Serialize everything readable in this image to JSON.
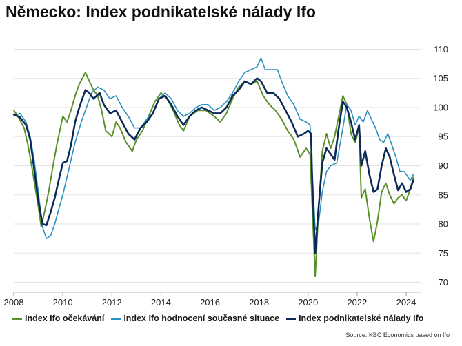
{
  "title": "Německo: Index podnikatelské nálady Ifo",
  "source": "Source: KBC Economics based on Ifo",
  "chart_data": {
    "type": "line",
    "xlabel": "",
    "ylabel": "",
    "xlim": [
      2008,
      2024.42
    ],
    "ylim": [
      69,
      111
    ],
    "x_ticks": [
      "2008",
      "2010",
      "2012",
      "2014",
      "2016",
      "2018",
      "2020",
      "2022",
      "2024"
    ],
    "y_ticks": [
      "70",
      "75",
      "80",
      "85",
      "90",
      "95",
      "100",
      "105",
      "110"
    ],
    "y_axis_position": "right",
    "grid": "horizontal",
    "legend_position": "bottom",
    "series": [
      {
        "name": "Index Ifo očekávání",
        "color": "#5a8f29",
        "points": [
          [
            2008.0,
            99.5
          ],
          [
            2008.17,
            98.5
          ],
          [
            2008.42,
            96.5
          ],
          [
            2008.58,
            93.5
          ],
          [
            2008.75,
            89.5
          ],
          [
            2009.0,
            83.0
          ],
          [
            2009.12,
            79.5
          ],
          [
            2009.25,
            82.0
          ],
          [
            2009.42,
            85.5
          ],
          [
            2009.58,
            89.5
          ],
          [
            2009.75,
            93.5
          ],
          [
            2010.0,
            98.5
          ],
          [
            2010.17,
            97.5
          ],
          [
            2010.33,
            99.5
          ],
          [
            2010.5,
            102.0
          ],
          [
            2010.67,
            104.0
          ],
          [
            2010.92,
            106.0
          ],
          [
            2011.08,
            104.5
          ],
          [
            2011.25,
            103.0
          ],
          [
            2011.42,
            102.0
          ],
          [
            2011.58,
            99.5
          ],
          [
            2011.75,
            96.0
          ],
          [
            2012.0,
            95.0
          ],
          [
            2012.17,
            97.5
          ],
          [
            2012.33,
            96.5
          ],
          [
            2012.58,
            94.0
          ],
          [
            2012.83,
            92.5
          ],
          [
            2013.0,
            94.5
          ],
          [
            2013.25,
            96.0
          ],
          [
            2013.5,
            98.5
          ],
          [
            2013.75,
            101.0
          ],
          [
            2014.0,
            102.5
          ],
          [
            2014.25,
            101.5
          ],
          [
            2014.5,
            99.5
          ],
          [
            2014.75,
            97.0
          ],
          [
            2014.92,
            96.0
          ],
          [
            2015.17,
            98.5
          ],
          [
            2015.5,
            99.5
          ],
          [
            2015.83,
            99.5
          ],
          [
            2016.0,
            99.0
          ],
          [
            2016.17,
            98.5
          ],
          [
            2016.42,
            97.5
          ],
          [
            2016.67,
            99.0
          ],
          [
            2016.92,
            101.5
          ],
          [
            2017.17,
            103.5
          ],
          [
            2017.42,
            104.5
          ],
          [
            2017.67,
            104.0
          ],
          [
            2017.92,
            104.5
          ],
          [
            2018.17,
            102.0
          ],
          [
            2018.42,
            100.5
          ],
          [
            2018.67,
            99.5
          ],
          [
            2018.92,
            98.0
          ],
          [
            2019.17,
            96.0
          ],
          [
            2019.42,
            94.5
          ],
          [
            2019.67,
            91.5
          ],
          [
            2019.92,
            93.0
          ],
          [
            2020.08,
            92.0
          ],
          [
            2020.17,
            83.0
          ],
          [
            2020.29,
            71.0
          ],
          [
            2020.42,
            82.0
          ],
          [
            2020.58,
            92.5
          ],
          [
            2020.75,
            95.5
          ],
          [
            2020.92,
            93.0
          ],
          [
            2021.08,
            95.0
          ],
          [
            2021.25,
            98.5
          ],
          [
            2021.42,
            102.0
          ],
          [
            2021.58,
            100.5
          ],
          [
            2021.75,
            95.5
          ],
          [
            2021.92,
            94.0
          ],
          [
            2022.08,
            96.5
          ],
          [
            2022.17,
            84.5
          ],
          [
            2022.33,
            86.0
          ],
          [
            2022.5,
            81.0
          ],
          [
            2022.67,
            77.0
          ],
          [
            2022.83,
            80.5
          ],
          [
            2023.0,
            85.5
          ],
          [
            2023.17,
            87.0
          ],
          [
            2023.33,
            85.0
          ],
          [
            2023.5,
            83.5
          ],
          [
            2023.67,
            84.5
          ],
          [
            2023.83,
            85.0
          ],
          [
            2024.0,
            84.0
          ],
          [
            2024.17,
            86.0
          ],
          [
            2024.29,
            88.0
          ]
        ]
      },
      {
        "name": "Index Ifo hodnocení současné situace",
        "color": "#2a8fc1",
        "points": [
          [
            2008.0,
            98.5
          ],
          [
            2008.25,
            99.0
          ],
          [
            2008.5,
            97.5
          ],
          [
            2008.67,
            95.0
          ],
          [
            2008.83,
            91.0
          ],
          [
            2009.0,
            85.5
          ],
          [
            2009.17,
            79.5
          ],
          [
            2009.33,
            77.5
          ],
          [
            2009.5,
            78.0
          ],
          [
            2009.67,
            80.0
          ],
          [
            2009.83,
            82.5
          ],
          [
            2010.0,
            85.0
          ],
          [
            2010.25,
            89.5
          ],
          [
            2010.5,
            94.0
          ],
          [
            2010.75,
            97.5
          ],
          [
            2010.92,
            99.5
          ],
          [
            2011.17,
            102.5
          ],
          [
            2011.42,
            103.5
          ],
          [
            2011.67,
            103.0
          ],
          [
            2011.92,
            101.5
          ],
          [
            2012.17,
            102.0
          ],
          [
            2012.42,
            100.0
          ],
          [
            2012.67,
            98.5
          ],
          [
            2012.92,
            96.5
          ],
          [
            2013.17,
            96.5
          ],
          [
            2013.42,
            98.0
          ],
          [
            2013.67,
            99.0
          ],
          [
            2013.92,
            101.5
          ],
          [
            2014.17,
            102.5
          ],
          [
            2014.42,
            101.5
          ],
          [
            2014.67,
            99.5
          ],
          [
            2014.92,
            98.5
          ],
          [
            2015.17,
            99.0
          ],
          [
            2015.42,
            100.0
          ],
          [
            2015.67,
            100.5
          ],
          [
            2015.92,
            100.5
          ],
          [
            2016.17,
            99.5
          ],
          [
            2016.42,
            100.0
          ],
          [
            2016.67,
            101.0
          ],
          [
            2016.92,
            102.5
          ],
          [
            2017.17,
            104.5
          ],
          [
            2017.42,
            106.0
          ],
          [
            2017.67,
            106.5
          ],
          [
            2017.92,
            107.0
          ],
          [
            2018.08,
            108.5
          ],
          [
            2018.25,
            106.5
          ],
          [
            2018.5,
            106.5
          ],
          [
            2018.75,
            106.5
          ],
          [
            2018.92,
            104.5
          ],
          [
            2019.17,
            102.0
          ],
          [
            2019.42,
            100.5
          ],
          [
            2019.67,
            98.0
          ],
          [
            2019.92,
            97.5
          ],
          [
            2020.08,
            97.0
          ],
          [
            2020.17,
            89.0
          ],
          [
            2020.29,
            79.0
          ],
          [
            2020.42,
            80.0
          ],
          [
            2020.58,
            85.5
          ],
          [
            2020.75,
            89.0
          ],
          [
            2020.92,
            90.0
          ],
          [
            2021.17,
            90.5
          ],
          [
            2021.42,
            96.5
          ],
          [
            2021.58,
            100.5
          ],
          [
            2021.75,
            99.5
          ],
          [
            2021.92,
            97.0
          ],
          [
            2022.08,
            98.5
          ],
          [
            2022.25,
            97.5
          ],
          [
            2022.42,
            99.5
          ],
          [
            2022.58,
            98.0
          ],
          [
            2022.75,
            96.5
          ],
          [
            2022.92,
            94.5
          ],
          [
            2023.08,
            94.0
          ],
          [
            2023.25,
            95.5
          ],
          [
            2023.42,
            93.5
          ],
          [
            2023.58,
            91.5
          ],
          [
            2023.75,
            89.0
          ],
          [
            2023.92,
            89.0
          ],
          [
            2024.08,
            88.0
          ],
          [
            2024.17,
            87.5
          ],
          [
            2024.29,
            88.5
          ]
        ]
      },
      {
        "name": "Index podnikatelské nálady Ifo",
        "color": "#0b2a57",
        "points": [
          [
            2008.0,
            98.8
          ],
          [
            2008.25,
            98.3
          ],
          [
            2008.5,
            97.0
          ],
          [
            2008.67,
            94.5
          ],
          [
            2008.83,
            89.5
          ],
          [
            2009.0,
            84.0
          ],
          [
            2009.17,
            80.0
          ],
          [
            2009.33,
            79.8
          ],
          [
            2009.5,
            82.0
          ],
          [
            2009.67,
            84.5
          ],
          [
            2009.83,
            87.5
          ],
          [
            2010.0,
            90.5
          ],
          [
            2010.17,
            90.8
          ],
          [
            2010.33,
            93.5
          ],
          [
            2010.5,
            97.5
          ],
          [
            2010.67,
            100.0
          ],
          [
            2010.92,
            103.0
          ],
          [
            2011.08,
            102.5
          ],
          [
            2011.25,
            101.5
          ],
          [
            2011.5,
            102.5
          ],
          [
            2011.67,
            100.5
          ],
          [
            2011.92,
            99.0
          ],
          [
            2012.17,
            99.5
          ],
          [
            2012.42,
            97.5
          ],
          [
            2012.67,
            95.5
          ],
          [
            2012.92,
            94.5
          ],
          [
            2013.17,
            96.5
          ],
          [
            2013.42,
            97.5
          ],
          [
            2013.67,
            99.0
          ],
          [
            2013.92,
            101.5
          ],
          [
            2014.17,
            102.0
          ],
          [
            2014.42,
            100.5
          ],
          [
            2014.67,
            98.5
          ],
          [
            2014.92,
            97.0
          ],
          [
            2015.17,
            98.5
          ],
          [
            2015.42,
            99.5
          ],
          [
            2015.67,
            100.0
          ],
          [
            2015.92,
            99.5
          ],
          [
            2016.17,
            99.0
          ],
          [
            2016.42,
            99.0
          ],
          [
            2016.67,
            100.0
          ],
          [
            2016.92,
            102.0
          ],
          [
            2017.17,
            103.0
          ],
          [
            2017.42,
            104.5
          ],
          [
            2017.67,
            104.0
          ],
          [
            2017.92,
            105.0
          ],
          [
            2018.08,
            104.5
          ],
          [
            2018.33,
            102.5
          ],
          [
            2018.58,
            102.5
          ],
          [
            2018.83,
            101.5
          ],
          [
            2019.08,
            99.5
          ],
          [
            2019.33,
            97.5
          ],
          [
            2019.58,
            95.0
          ],
          [
            2019.83,
            95.5
          ],
          [
            2020.0,
            96.0
          ],
          [
            2020.12,
            95.5
          ],
          [
            2020.17,
            87.0
          ],
          [
            2020.29,
            75.0
          ],
          [
            2020.42,
            82.5
          ],
          [
            2020.58,
            90.5
          ],
          [
            2020.75,
            93.0
          ],
          [
            2020.92,
            92.0
          ],
          [
            2021.08,
            91.0
          ],
          [
            2021.25,
            96.5
          ],
          [
            2021.42,
            101.0
          ],
          [
            2021.58,
            100.0
          ],
          [
            2021.75,
            97.5
          ],
          [
            2021.92,
            94.5
          ],
          [
            2022.08,
            97.0
          ],
          [
            2022.17,
            90.0
          ],
          [
            2022.33,
            92.5
          ],
          [
            2022.5,
            88.5
          ],
          [
            2022.67,
            85.5
          ],
          [
            2022.83,
            86.0
          ],
          [
            2023.0,
            90.0
          ],
          [
            2023.17,
            93.0
          ],
          [
            2023.33,
            91.5
          ],
          [
            2023.5,
            88.5
          ],
          [
            2023.67,
            85.8
          ],
          [
            2023.83,
            87.0
          ],
          [
            2024.0,
            85.5
          ],
          [
            2024.17,
            86.0
          ],
          [
            2024.29,
            87.5
          ]
        ]
      }
    ]
  }
}
